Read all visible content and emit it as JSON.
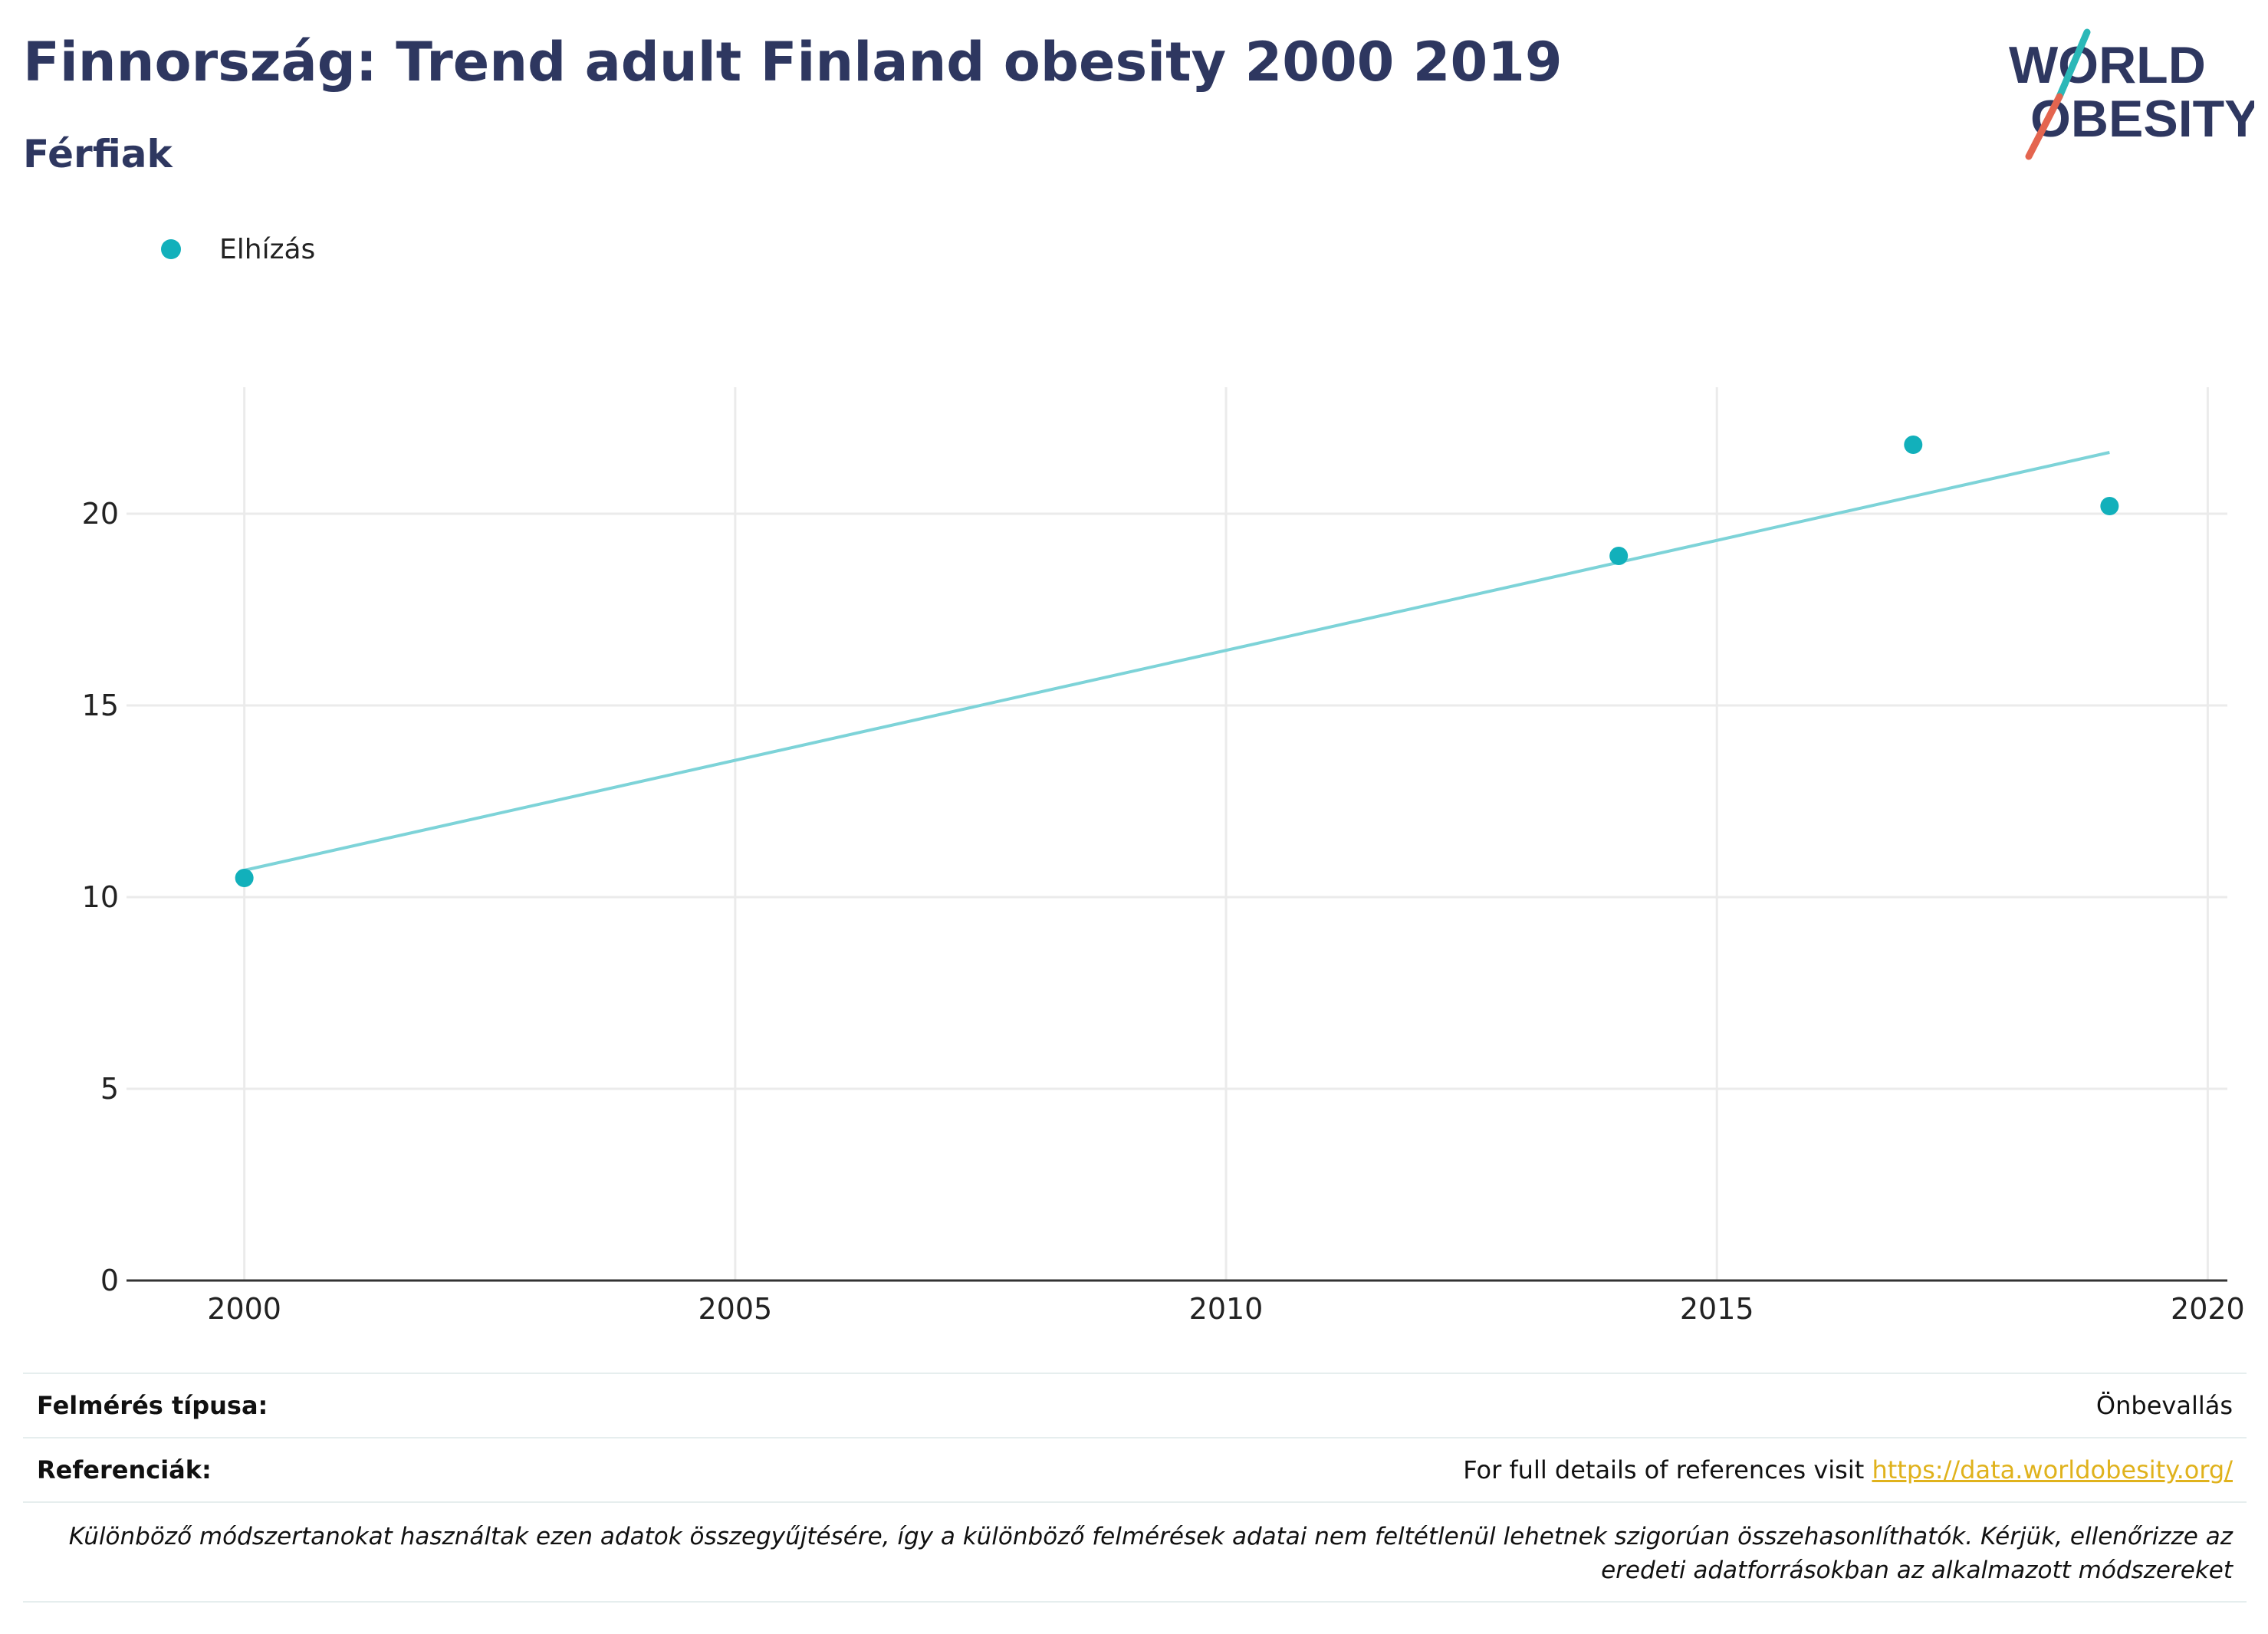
{
  "header": {
    "title": "Finnország: Trend adult Finland obesity 2000 2019",
    "subtitle": "Férfiak",
    "logo_text": [
      "WORLD",
      "OBESITY"
    ]
  },
  "colors": {
    "title": "#2e3760",
    "points": "#12b0bb",
    "trend": "#7dd3d8",
    "grid": "#ebebeb",
    "link": "#e0b21c",
    "logo_teal": "#2bb8b8",
    "logo_red": "#e4654f"
  },
  "chart_data": {
    "type": "scatter",
    "series": [
      {
        "name": "Elhízás",
        "x": [
          2000,
          2014,
          2017,
          2019
        ],
        "y": [
          10.5,
          18.9,
          21.8,
          20.2
        ]
      }
    ],
    "trendline": {
      "x": [
        2000,
        2019
      ],
      "y": [
        10.7,
        21.6
      ]
    },
    "xlim": [
      1998.8,
      2020.2
    ],
    "ylim": [
      0,
      23.3
    ],
    "xticks": [
      2000,
      2005,
      2010,
      2015,
      2020
    ],
    "yticks": [
      0,
      5,
      10,
      15,
      20
    ],
    "grid": true,
    "legend_position": "top-left"
  },
  "footer": {
    "survey_label": "Felmérés típusa:",
    "survey_value": "Önbevallás",
    "refs_label": "Referenciák:",
    "refs_text": "For full details of references visit",
    "refs_link": "https://data.worldobesity.org/",
    "note": "Különböző módszertanokat használtak ezen adatok összegyűjtésére, így a különböző felmérések adatai nem feltétlenül lehetnek szigorúan összehasonlíthatók. Kérjük, ellenőrizze az eredeti adatforrásokban az alkalmazott módszereket"
  }
}
